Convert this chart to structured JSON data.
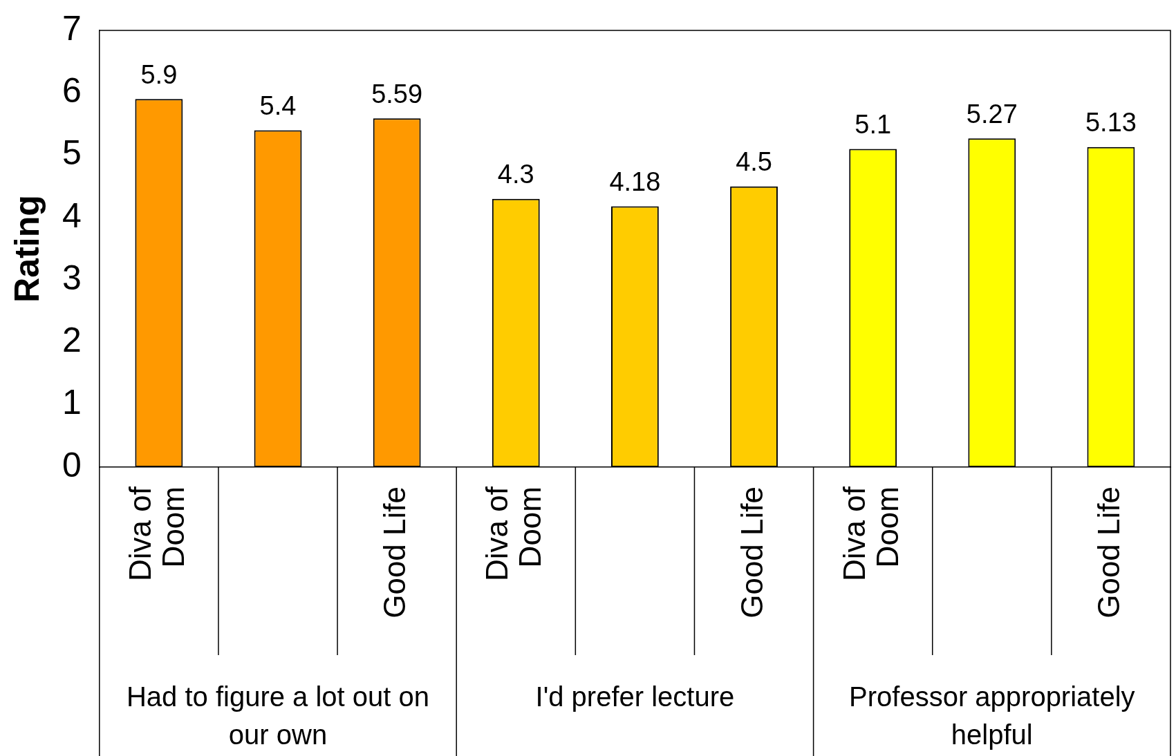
{
  "chart_data": {
    "type": "bar",
    "ylabel": "Rating",
    "categories": [
      "Diva of Doom",
      null,
      "Good Life",
      "Diva of Doom",
      null,
      "Good Life",
      "Diva of Doom",
      null,
      "Good Life"
    ],
    "values": [
      5.9,
      5.4,
      5.59,
      4.3,
      4.18,
      4.5,
      5.1,
      5.27,
      5.13
    ],
    "colors": [
      "#ff9900",
      "#ff9900",
      "#ff9900",
      "#ffcc00",
      "#ffcc00",
      "#ffcc00",
      "#ffff00",
      "#ffff00",
      "#ffff00"
    ],
    "annotations": [
      "Had to figure a lot out on our own",
      "I'd prefer lecture",
      "Professor appropriately helpful"
    ],
    "ylim": [
      0,
      7
    ],
    "yticks": [
      0,
      1,
      2,
      3,
      4,
      5,
      6,
      7
    ],
    "data_labels": true,
    "grid": false,
    "legend": false
  }
}
